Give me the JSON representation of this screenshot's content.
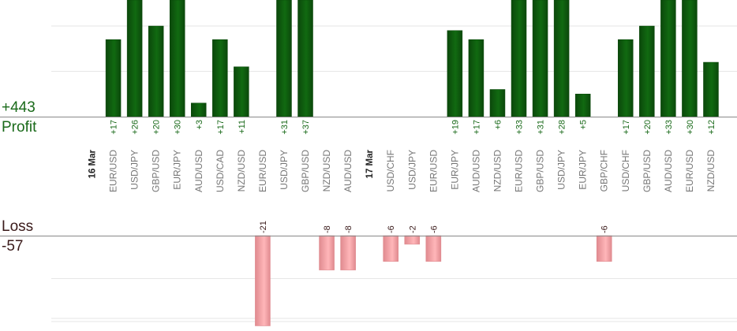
{
  "summary": {
    "profit_total": "+443",
    "profit_label": "Profit",
    "loss_label": "Loss",
    "loss_total": "-57"
  },
  "colors": {
    "profit_bar": "#116a11",
    "profit_bar_dark": "#0b480b",
    "profit_text": "#1a6a1a",
    "loss_bar": "#ffb6b9",
    "loss_bar_edge": "#e08a8f",
    "loss_text": "#3a1a1a",
    "grid": "#e6e6e6",
    "axis": "#888888",
    "category_text": "#777777",
    "date_text": "#222222"
  },
  "chart_data": {
    "type": "bar",
    "title": "",
    "xlabel": "",
    "ylabel": "",
    "categories": [
      "16 Mar",
      "EUR/USD",
      "USD/JPY",
      "GBP/USD",
      "EUR/JPY",
      "AUD/USD",
      "USD/CAD",
      "NZD/USD",
      "EUR/USD",
      "USD/JPY",
      "GBP/USD",
      "NZD/USD",
      "AUD/USD",
      "17 Mar",
      "USD/CHF",
      "USD/JPY",
      "EUR/USD",
      "EUR/JPY",
      "AUD/USD",
      "NZD/USD",
      "EUR/USD",
      "GBP/USD",
      "USD/JPY",
      "EUR/JPY",
      "GBP/CHF",
      "USD/CHF",
      "GBP/USD",
      "AUD/USD",
      "EUR/USD",
      "NZD/USD"
    ],
    "date_markers": [
      0,
      13
    ],
    "series": [
      {
        "name": "Profit",
        "values": [
          null,
          17,
          26,
          20,
          30,
          3,
          17,
          11,
          null,
          31,
          37,
          null,
          null,
          null,
          null,
          null,
          null,
          19,
          17,
          6,
          33,
          31,
          28,
          5,
          null,
          17,
          20,
          33,
          30,
          12
        ],
        "labels": [
          "",
          "+17",
          "+26",
          "+20",
          "+30",
          "+3",
          "+17",
          "+11",
          "",
          "+31",
          "+37",
          "",
          "",
          "",
          "",
          "",
          "",
          "+19",
          "+17",
          "+6",
          "+33",
          "+31",
          "+28",
          "+5",
          "",
          "+17",
          "+20",
          "+33",
          "+30",
          "+12"
        ]
      },
      {
        "name": "Loss",
        "values": [
          null,
          null,
          null,
          null,
          null,
          null,
          null,
          null,
          -21,
          null,
          null,
          -8,
          -8,
          null,
          -6,
          -2,
          -6,
          null,
          null,
          null,
          null,
          null,
          null,
          null,
          -6,
          null,
          null,
          null,
          null,
          null
        ],
        "labels": [
          "",
          "",
          "",
          "",
          "",
          "",
          "",
          "",
          "-21",
          "",
          "",
          "-8",
          "-8",
          "",
          "-6",
          "-2",
          "-6",
          "",
          "",
          "",
          "",
          "",
          "",
          "",
          "-6",
          "",
          "",
          "",
          "",
          ""
        ]
      }
    ],
    "profit_axis": {
      "ylim": [
        0,
        25
      ]
    },
    "loss_axis": {
      "ylim": [
        -20,
        0
      ]
    },
    "grid": true,
    "legend": "none"
  }
}
